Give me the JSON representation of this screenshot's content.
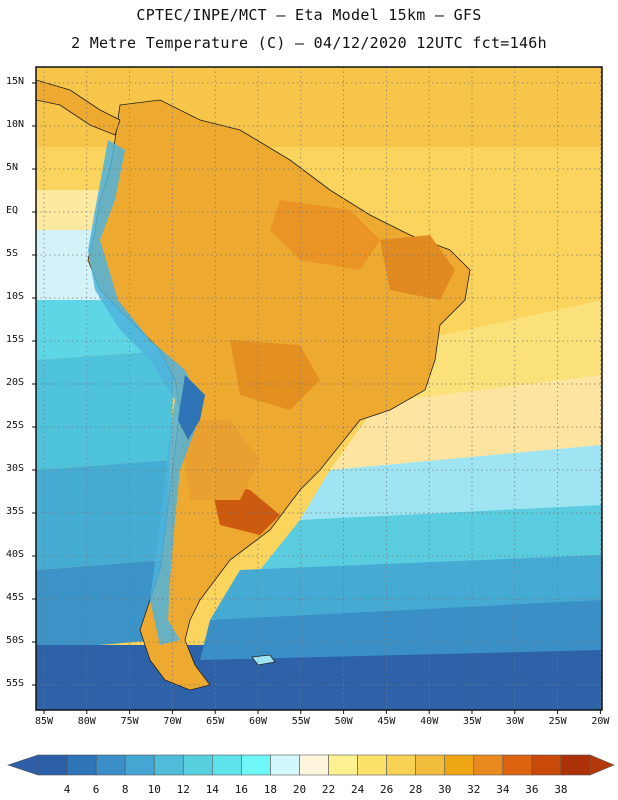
{
  "header": {
    "line1": "CPTEC/INPE/MCT –  Eta Model 15km – GFS",
    "line2": "2 Metre Temperature (C) – 04/12/2020 12UTC fct=146h"
  },
  "lat_labels": [
    "15N",
    "10N",
    "5N",
    "EQ",
    "5S",
    "10S",
    "15S",
    "20S",
    "25S",
    "30S",
    "35S",
    "40S",
    "45S",
    "50S",
    "55S"
  ],
  "lon_labels": [
    "85W",
    "80W",
    "75W",
    "70W",
    "65W",
    "60W",
    "55W",
    "50W",
    "45W",
    "40W",
    "35W",
    "30W",
    "25W",
    "20W"
  ],
  "colorbar": {
    "labels": [
      "4",
      "6",
      "8",
      "10",
      "12",
      "14",
      "16",
      "18",
      "20",
      "22",
      "24",
      "26",
      "28",
      "30",
      "32",
      "34",
      "36",
      "38"
    ],
    "colors": [
      "#2b5fa8",
      "#2f74b6",
      "#3b8ec7",
      "#45a6d4",
      "#4fbdd9",
      "#57cfdf",
      "#5fe3ea",
      "#6ff6f6",
      "#d2f7fc",
      "#fef6dc",
      "#fef191",
      "#fde26a",
      "#f8d054",
      "#f1bb3b",
      "#eda513",
      "#ea8a1e",
      "#de6310",
      "#c84908",
      "#ad3107"
    ],
    "low_color": "#2e5fa6",
    "high_color": "#b33908"
  },
  "map_colors": {
    "ocean_north": "#f9d25a",
    "ocean_cold_deep": "#2a5ea7",
    "land_warm": "#eeaa30",
    "land_hot": "#d96c14",
    "andes": "#3d8bc4"
  }
}
